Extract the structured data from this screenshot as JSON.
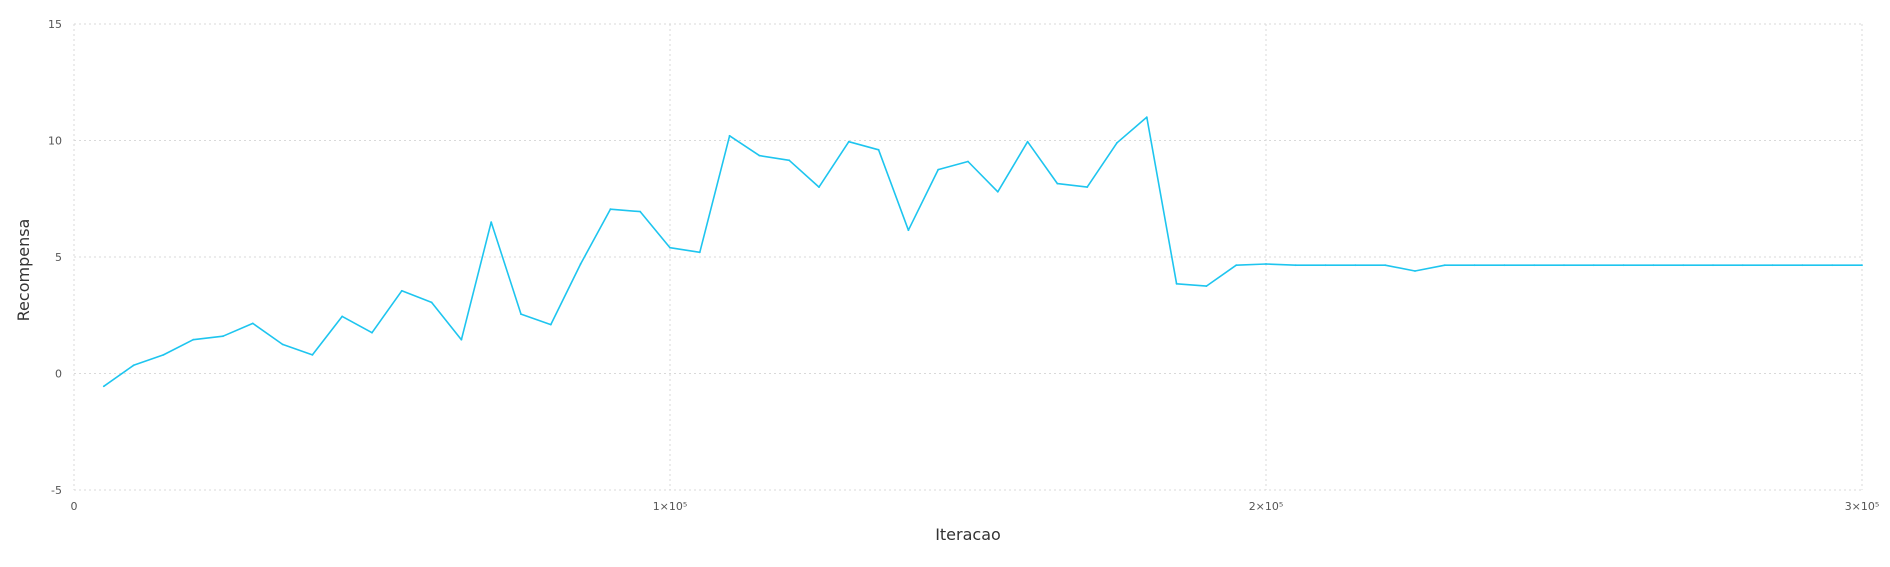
{
  "chart_data": {
    "type": "line",
    "title": "",
    "xlabel": "Iteracao",
    "ylabel": "Recompensa",
    "xlim": [
      0,
      300000
    ],
    "ylim": [
      -5,
      15
    ],
    "grid": true,
    "line_color": "#1ec5ef",
    "x_ticks": [
      {
        "value": 0,
        "label": "0"
      },
      {
        "value": 100000,
        "label": "1×10⁵"
      },
      {
        "value": 200000,
        "label": "2×10⁵"
      },
      {
        "value": 300000,
        "label": "3×10⁵"
      }
    ],
    "y_ticks": [
      {
        "value": -5,
        "label": "-5"
      },
      {
        "value": 0,
        "label": "0"
      },
      {
        "value": 5,
        "label": "5"
      },
      {
        "value": 10,
        "label": "10"
      },
      {
        "value": 15,
        "label": "15"
      }
    ],
    "series": [
      {
        "x": [
          5000,
          10000,
          15000,
          20000,
          25000,
          30000,
          35000,
          40000,
          45000,
          50000,
          55000,
          60000,
          65000,
          70000,
          75000,
          80000,
          85000,
          90000,
          95000,
          100000,
          105000,
          110000,
          115000,
          120000,
          125000,
          130000,
          135000,
          140000,
          145000,
          150000,
          155000,
          160000,
          165000,
          170000,
          175000,
          180000,
          185000,
          190000,
          195000,
          200000,
          205000,
          210000,
          215000,
          220000,
          225000,
          230000,
          235000,
          240000,
          245000,
          250000,
          255000,
          260000,
          265000,
          270000,
          275000,
          280000,
          285000,
          290000,
          295000,
          300000
        ],
        "y": [
          -0.55,
          0.35,
          0.8,
          1.45,
          1.6,
          2.15,
          1.25,
          0.8,
          2.45,
          1.75,
          3.55,
          3.05,
          1.45,
          6.5,
          2.55,
          2.1,
          4.7,
          7.05,
          6.95,
          5.4,
          5.2,
          10.2,
          9.35,
          9.15,
          8.0,
          9.95,
          9.6,
          6.15,
          8.75,
          9.1,
          7.8,
          9.95,
          8.15,
          8.0,
          9.9,
          11.0,
          3.85,
          3.75,
          4.65,
          4.7,
          4.65,
          4.65,
          4.65,
          4.65,
          4.4,
          4.65,
          4.65,
          4.65,
          4.65,
          4.65,
          4.65,
          4.65,
          4.65,
          4.65,
          4.65,
          4.65,
          4.65,
          4.65,
          4.65,
          4.65
        ]
      }
    ]
  }
}
